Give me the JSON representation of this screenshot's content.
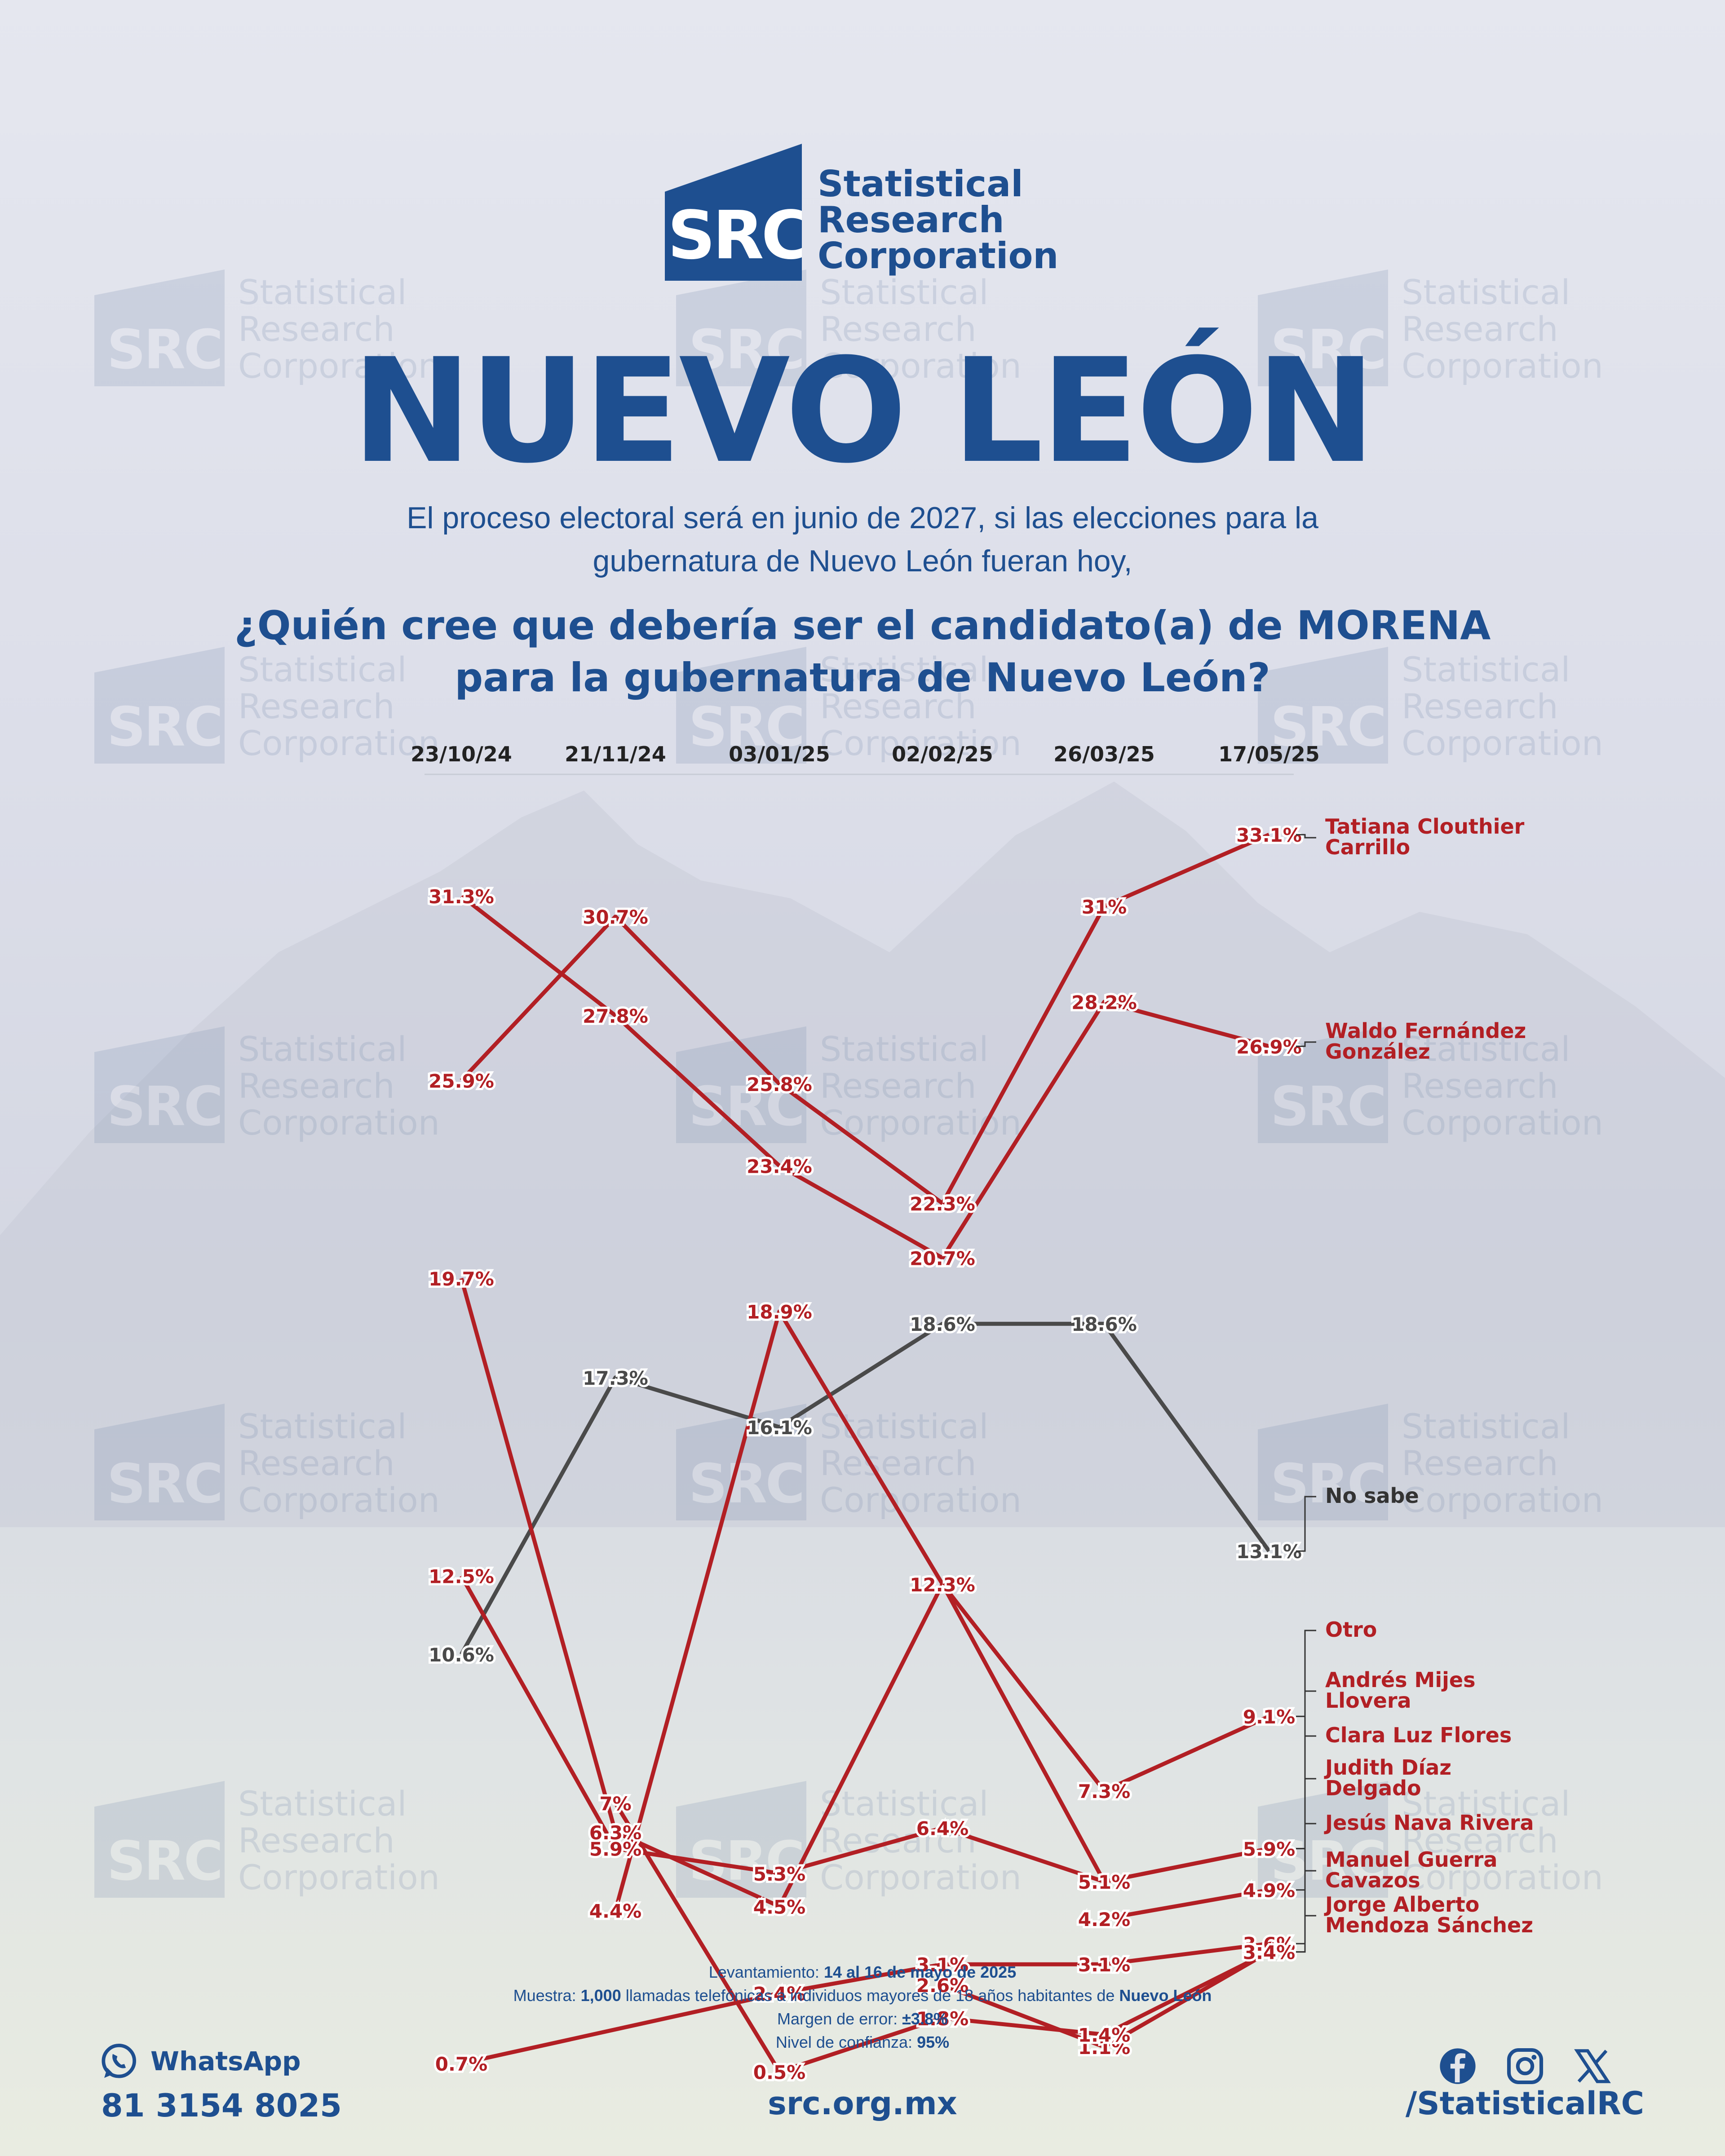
{
  "brand": {
    "logo_abbr": "SRC",
    "logo_line1": "Statistical",
    "logo_line2": "Research",
    "logo_line3": "Corporation"
  },
  "title": "NUEVO LEÓN",
  "intro_line1": "El proceso electoral será en junio de 2027, si las elecciones para la",
  "intro_line2": "gubernatura de Nuevo León fueran hoy,",
  "question_line1": "¿Quién cree que debería ser el candidato(a) de MORENA",
  "question_line2": "para la gubernatura de Nuevo León?",
  "colors": {
    "brand_blue": "#1e4f90",
    "candidate_red": "#b21f24",
    "no_sabe_gray": "#4a4a4a"
  },
  "chart_data": {
    "type": "line",
    "x": [
      "23/10/24",
      "21/11/24",
      "03/01/25",
      "02/02/25",
      "26/03/25",
      "17/05/25"
    ],
    "unit": "%",
    "series": [
      {
        "name": "Tatiana Clouthier Carrillo",
        "values": [
          25.9,
          30.7,
          25.8,
          22.3,
          31,
          33.1
        ],
        "labels": [
          "25.9%",
          "30.7%",
          "25.8%",
          "22.3%",
          "31%",
          "33.1%"
        ]
      },
      {
        "name": "Waldo Fernández González",
        "values": [
          31.3,
          27.8,
          23.4,
          20.7,
          28.2,
          26.9
        ],
        "labels": [
          "31.3%",
          "27.8%",
          "23.4%",
          "20.7%",
          "28.2%",
          "26.9%"
        ]
      },
      {
        "name": "No sabe",
        "values": [
          10.6,
          17.3,
          16.1,
          18.6,
          18.6,
          13.1
        ],
        "labels": [
          "10.6%",
          "17.3%",
          "16.1%",
          "18.6%",
          "18.6%",
          "13.1%"
        ]
      },
      {
        "name": "Otro",
        "values": [
          19.7,
          6.3,
          4.5,
          12.3,
          7.3,
          9.1
        ],
        "labels": [
          "19.7%",
          "6.3%",
          "4.5%",
          "12.3%",
          "7.3%",
          "9.1%"
        ]
      },
      {
        "name": "Andrés Mijes Llovera",
        "values": [
          null,
          4.4,
          18.9,
          12.3,
          5.1,
          5.9
        ],
        "labels": [
          "",
          "4.4%",
          "18.9%",
          "12.3%",
          "5.1%",
          "5.9%"
        ]
      },
      {
        "name": "Clara Luz Flores",
        "values": [
          12.5,
          5.9,
          5.3,
          6.4,
          5.1,
          5.9
        ],
        "labels": [
          "12.5%",
          "5.9%",
          "5.3%",
          "6.4%",
          "5.1%",
          "5.9%"
        ]
      },
      {
        "name": "Judith Díaz Delgado",
        "values": [
          null,
          null,
          null,
          null,
          4.2,
          4.9
        ],
        "labels": [
          "",
          "",
          "",
          "",
          "4.2%",
          "4.9%"
        ]
      },
      {
        "name": "Jesús Nava Rivera",
        "values": [
          0.7,
          null,
          2.4,
          3.1,
          3.1,
          3.6
        ],
        "labels": [
          "0.7%",
          "",
          "2.4%",
          "3.1%",
          "3.1%",
          "3.6%"
        ]
      },
      {
        "name": "Manuel Guerra Cavazos",
        "values": [
          null,
          null,
          null,
          2.6,
          1.1,
          3.4
        ],
        "labels": [
          "",
          "",
          "",
          "2.6%",
          "1.1%",
          "3.4%"
        ]
      },
      {
        "name": "Jorge Alberto Mendoza Sánchez",
        "values": [
          null,
          7,
          0.5,
          1.8,
          1.4,
          3.4
        ],
        "labels": [
          "",
          "7%",
          "0.5%",
          "1.8%",
          "1.4%",
          "3.4%"
        ]
      }
    ],
    "end_labels": [
      "Tatiana Clouthier\nCarrillo",
      "Waldo Fernández\nGonzález",
      "No sabe",
      "Otro",
      "Andrés Mijes\nLlovera",
      "Clara Luz Flores",
      "Judith Díaz\nDelgado",
      "Jesús Nava Rivera",
      "Manuel Guerra\nCavazos",
      "Jorge Alberto\nMendoza Sánchez"
    ],
    "xlabel": "",
    "ylabel": "",
    "grid": false
  },
  "footer": {
    "levantamiento_label": "Levantamiento: ",
    "levantamiento_value": "14 al 16 de mayo de 2025",
    "muestra_label": "Muestra: ",
    "muestra_value": "1,000",
    "muestra_text": " llamadas telefónicas a individuos mayores de 18 años habitantes de ",
    "muestra_place": "Nuevo León",
    "margen_label": "Margen de error: ",
    "margen_value": "±3.8%",
    "nivel_label": "Nivel de confianza: ",
    "nivel_value": "95%"
  },
  "contact": {
    "whatsapp_label": "WhatsApp",
    "whatsapp_number": "81 3154 8025",
    "website": "src.org.mx",
    "social_handle": "/StatisticalRC",
    "icons": [
      "whatsapp-icon",
      "facebook-icon",
      "instagram-icon",
      "x-icon"
    ]
  }
}
